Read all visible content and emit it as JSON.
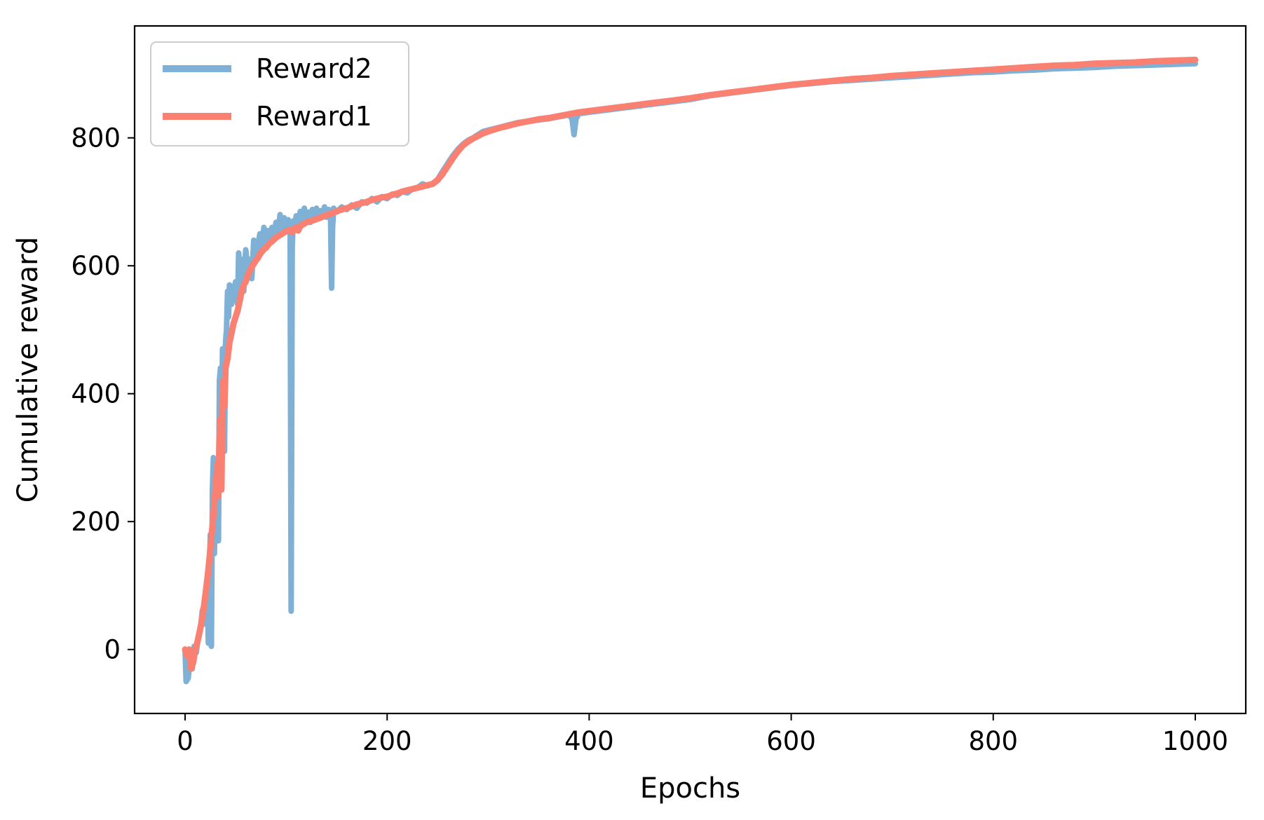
{
  "chart_data": {
    "type": "line",
    "title": "",
    "xlabel": "Epochs",
    "ylabel": "Cumulative reward",
    "xlim": [
      -50,
      1050
    ],
    "ylim": [
      -100,
      975
    ],
    "xticks": [
      0,
      200,
      400,
      600,
      800,
      1000
    ],
    "yticks": [
      0,
      200,
      400,
      600,
      800
    ],
    "grid": false,
    "legend_position": "top-left",
    "series": [
      {
        "name": "Reward2",
        "color": "#7fb0d5",
        "points": [
          [
            0,
            0
          ],
          [
            1,
            -50
          ],
          [
            3,
            -45
          ],
          [
            5,
            -15
          ],
          [
            7,
            -30
          ],
          [
            9,
            5
          ],
          [
            11,
            -5
          ],
          [
            13,
            20
          ],
          [
            15,
            30
          ],
          [
            17,
            60
          ],
          [
            19,
            70
          ],
          [
            20,
            40
          ],
          [
            22,
            100
          ],
          [
            23,
            10
          ],
          [
            24,
            130
          ],
          [
            25,
            180
          ],
          [
            26,
            5
          ],
          [
            27,
            250
          ],
          [
            28,
            300
          ],
          [
            29,
            150
          ],
          [
            30,
            290
          ],
          [
            31,
            180
          ],
          [
            32,
            270
          ],
          [
            33,
            170
          ],
          [
            34,
            420
          ],
          [
            35,
            440
          ],
          [
            36,
            330
          ],
          [
            37,
            470
          ],
          [
            38,
            460
          ],
          [
            39,
            310
          ],
          [
            40,
            480
          ],
          [
            41,
            500
          ],
          [
            42,
            560
          ],
          [
            43,
            520
          ],
          [
            44,
            570
          ],
          [
            46,
            540
          ],
          [
            48,
            560
          ],
          [
            50,
            575
          ],
          [
            52,
            540
          ],
          [
            53,
            620
          ],
          [
            55,
            580
          ],
          [
            57,
            610
          ],
          [
            58,
            560
          ],
          [
            60,
            625
          ],
          [
            62,
            595
          ],
          [
            64,
            610
          ],
          [
            66,
            580
          ],
          [
            68,
            640
          ],
          [
            70,
            610
          ],
          [
            72,
            630
          ],
          [
            74,
            650
          ],
          [
            76,
            625
          ],
          [
            78,
            660
          ],
          [
            80,
            635
          ],
          [
            82,
            655
          ],
          [
            84,
            640
          ],
          [
            86,
            660
          ],
          [
            88,
            645
          ],
          [
            90,
            668
          ],
          [
            92,
            650
          ],
          [
            94,
            680
          ],
          [
            96,
            655
          ],
          [
            98,
            675
          ],
          [
            100,
            660
          ],
          [
            102,
            672
          ],
          [
            104,
            650
          ],
          [
            105,
            60
          ],
          [
            106,
            630
          ],
          [
            107,
            670
          ],
          [
            108,
            655
          ],
          [
            110,
            678
          ],
          [
            112,
            660
          ],
          [
            114,
            685
          ],
          [
            116,
            665
          ],
          [
            118,
            690
          ],
          [
            120,
            670
          ],
          [
            122,
            684
          ],
          [
            124,
            668
          ],
          [
            126,
            688
          ],
          [
            128,
            672
          ],
          [
            130,
            690
          ],
          [
            132,
            675
          ],
          [
            134,
            686
          ],
          [
            136,
            680
          ],
          [
            138,
            692
          ],
          [
            140,
            676
          ],
          [
            142,
            688
          ],
          [
            144,
            680
          ],
          [
            145,
            565
          ],
          [
            146,
            660
          ],
          [
            147,
            690
          ],
          [
            150,
            684
          ],
          [
            155,
            692
          ],
          [
            160,
            688
          ],
          [
            165,
            695
          ],
          [
            170,
            690
          ],
          [
            175,
            700
          ],
          [
            180,
            698
          ],
          [
            185,
            705
          ],
          [
            190,
            700
          ],
          [
            195,
            708
          ],
          [
            200,
            705
          ],
          [
            205,
            712
          ],
          [
            210,
            710
          ],
          [
            215,
            716
          ],
          [
            220,
            714
          ],
          [
            225,
            720
          ],
          [
            230,
            722
          ],
          [
            235,
            728
          ],
          [
            240,
            725
          ],
          [
            245,
            728
          ],
          [
            250,
            735
          ],
          [
            255,
            748
          ],
          [
            260,
            760
          ],
          [
            265,
            772
          ],
          [
            270,
            782
          ],
          [
            275,
            790
          ],
          [
            280,
            796
          ],
          [
            285,
            800
          ],
          [
            290,
            805
          ],
          [
            295,
            810
          ],
          [
            300,
            812
          ],
          [
            310,
            816
          ],
          [
            320,
            820
          ],
          [
            330,
            824
          ],
          [
            340,
            826
          ],
          [
            350,
            828
          ],
          [
            360,
            830
          ],
          [
            370,
            833
          ],
          [
            380,
            836
          ],
          [
            383,
            830
          ],
          [
            385,
            805
          ],
          [
            387,
            830
          ],
          [
            390,
            838
          ],
          [
            400,
            840
          ],
          [
            420,
            844
          ],
          [
            440,
            848
          ],
          [
            460,
            852
          ],
          [
            480,
            856
          ],
          [
            500,
            860
          ],
          [
            520,
            866
          ],
          [
            540,
            870
          ],
          [
            560,
            874
          ],
          [
            580,
            878
          ],
          [
            600,
            882
          ],
          [
            620,
            885
          ],
          [
            640,
            888
          ],
          [
            660,
            890
          ],
          [
            680,
            892
          ],
          [
            700,
            894
          ],
          [
            720,
            896
          ],
          [
            740,
            898
          ],
          [
            760,
            900
          ],
          [
            780,
            902
          ],
          [
            800,
            903
          ],
          [
            820,
            905
          ],
          [
            840,
            906
          ],
          [
            860,
            908
          ],
          [
            880,
            909
          ],
          [
            900,
            910
          ],
          [
            920,
            912
          ],
          [
            940,
            913
          ],
          [
            960,
            914
          ],
          [
            980,
            915
          ],
          [
            1000,
            916
          ]
        ]
      },
      {
        "name": "Reward1",
        "color": "#fa8072",
        "points": [
          [
            0,
            0
          ],
          [
            2,
            -10
          ],
          [
            4,
            0
          ],
          [
            6,
            -30
          ],
          [
            8,
            -20
          ],
          [
            10,
            0
          ],
          [
            12,
            10
          ],
          [
            14,
            25
          ],
          [
            16,
            40
          ],
          [
            18,
            60
          ],
          [
            20,
            85
          ],
          [
            22,
            110
          ],
          [
            24,
            140
          ],
          [
            26,
            175
          ],
          [
            28,
            210
          ],
          [
            30,
            250
          ],
          [
            32,
            290
          ],
          [
            33,
            240
          ],
          [
            34,
            330
          ],
          [
            35,
            360
          ],
          [
            36,
            250
          ],
          [
            37,
            400
          ],
          [
            38,
            420
          ],
          [
            39,
            380
          ],
          [
            40,
            440
          ],
          [
            42,
            455
          ],
          [
            44,
            480
          ],
          [
            46,
            495
          ],
          [
            48,
            510
          ],
          [
            50,
            520
          ],
          [
            52,
            530
          ],
          [
            54,
            545
          ],
          [
            56,
            560
          ],
          [
            58,
            570
          ],
          [
            60,
            575
          ],
          [
            62,
            585
          ],
          [
            64,
            592
          ],
          [
            66,
            598
          ],
          [
            68,
            603
          ],
          [
            70,
            608
          ],
          [
            72,
            612
          ],
          [
            74,
            618
          ],
          [
            76,
            622
          ],
          [
            78,
            626
          ],
          [
            80,
            628
          ],
          [
            82,
            632
          ],
          [
            84,
            636
          ],
          [
            86,
            638
          ],
          [
            88,
            641
          ],
          [
            90,
            644
          ],
          [
            92,
            646
          ],
          [
            94,
            648
          ],
          [
            96,
            650
          ],
          [
            98,
            652
          ],
          [
            100,
            654
          ],
          [
            102,
            655
          ],
          [
            104,
            656
          ],
          [
            106,
            652
          ],
          [
            108,
            658
          ],
          [
            110,
            660
          ],
          [
            112,
            655
          ],
          [
            114,
            662
          ],
          [
            116,
            664
          ],
          [
            118,
            666
          ],
          [
            120,
            668
          ],
          [
            125,
            670
          ],
          [
            130,
            673
          ],
          [
            135,
            676
          ],
          [
            140,
            679
          ],
          [
            145,
            682
          ],
          [
            150,
            685
          ],
          [
            155,
            688
          ],
          [
            160,
            690
          ],
          [
            165,
            693
          ],
          [
            170,
            696
          ],
          [
            175,
            698
          ],
          [
            180,
            700
          ],
          [
            185,
            703
          ],
          [
            190,
            705
          ],
          [
            195,
            707
          ],
          [
            200,
            708
          ],
          [
            205,
            711
          ],
          [
            210,
            713
          ],
          [
            215,
            716
          ],
          [
            220,
            718
          ],
          [
            225,
            720
          ],
          [
            230,
            722
          ],
          [
            235,
            724
          ],
          [
            240,
            726
          ],
          [
            245,
            728
          ],
          [
            250,
            734
          ],
          [
            255,
            744
          ],
          [
            260,
            756
          ],
          [
            265,
            768
          ],
          [
            270,
            779
          ],
          [
            275,
            788
          ],
          [
            280,
            794
          ],
          [
            285,
            799
          ],
          [
            290,
            803
          ],
          [
            295,
            807
          ],
          [
            300,
            810
          ],
          [
            310,
            815
          ],
          [
            320,
            819
          ],
          [
            330,
            823
          ],
          [
            340,
            826
          ],
          [
            350,
            829
          ],
          [
            360,
            831
          ],
          [
            370,
            834
          ],
          [
            380,
            837
          ],
          [
            390,
            840
          ],
          [
            400,
            842
          ],
          [
            420,
            846
          ],
          [
            440,
            850
          ],
          [
            460,
            854
          ],
          [
            480,
            858
          ],
          [
            500,
            862
          ],
          [
            520,
            867
          ],
          [
            540,
            871
          ],
          [
            560,
            875
          ],
          [
            580,
            879
          ],
          [
            600,
            883
          ],
          [
            620,
            886
          ],
          [
            640,
            889
          ],
          [
            660,
            892
          ],
          [
            680,
            894
          ],
          [
            700,
            897
          ],
          [
            720,
            899
          ],
          [
            740,
            901
          ],
          [
            760,
            903
          ],
          [
            780,
            905
          ],
          [
            800,
            907
          ],
          [
            820,
            909
          ],
          [
            840,
            911
          ],
          [
            860,
            913
          ],
          [
            880,
            914
          ],
          [
            900,
            916
          ],
          [
            920,
            917
          ],
          [
            940,
            918
          ],
          [
            960,
            920
          ],
          [
            980,
            921
          ],
          [
            1000,
            922
          ]
        ]
      }
    ]
  }
}
